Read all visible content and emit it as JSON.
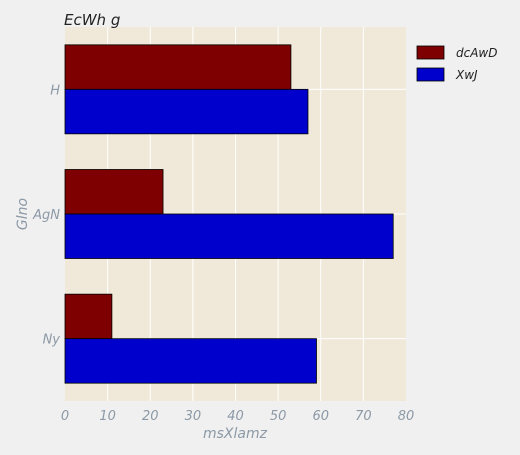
{
  "chart_data": {
    "type": "bar",
    "orientation": "horizontal",
    "title": "EcWh g",
    "xlabel": "msXlamz",
    "ylabel": "Glno",
    "categories": [
      "H",
      "AgN",
      "Ny"
    ],
    "series": [
      {
        "name": "dcAwD",
        "values": [
          53,
          23,
          11
        ],
        "color": "#7f0000"
      },
      {
        "name": "XwJ",
        "values": [
          57,
          77,
          59
        ],
        "color": "#0000cc"
      }
    ],
    "xlim": [
      0,
      80
    ],
    "xticks": [
      0,
      10,
      20,
      30,
      40,
      50,
      60,
      70,
      80
    ],
    "grid": true,
    "legend": "top-right outside"
  },
  "colors": {
    "background": "#f0f0f0",
    "plot_background": "#f0e9d9",
    "grid": "#ffffff",
    "axis_text": "#8c99a6",
    "title_text": "#222222"
  }
}
